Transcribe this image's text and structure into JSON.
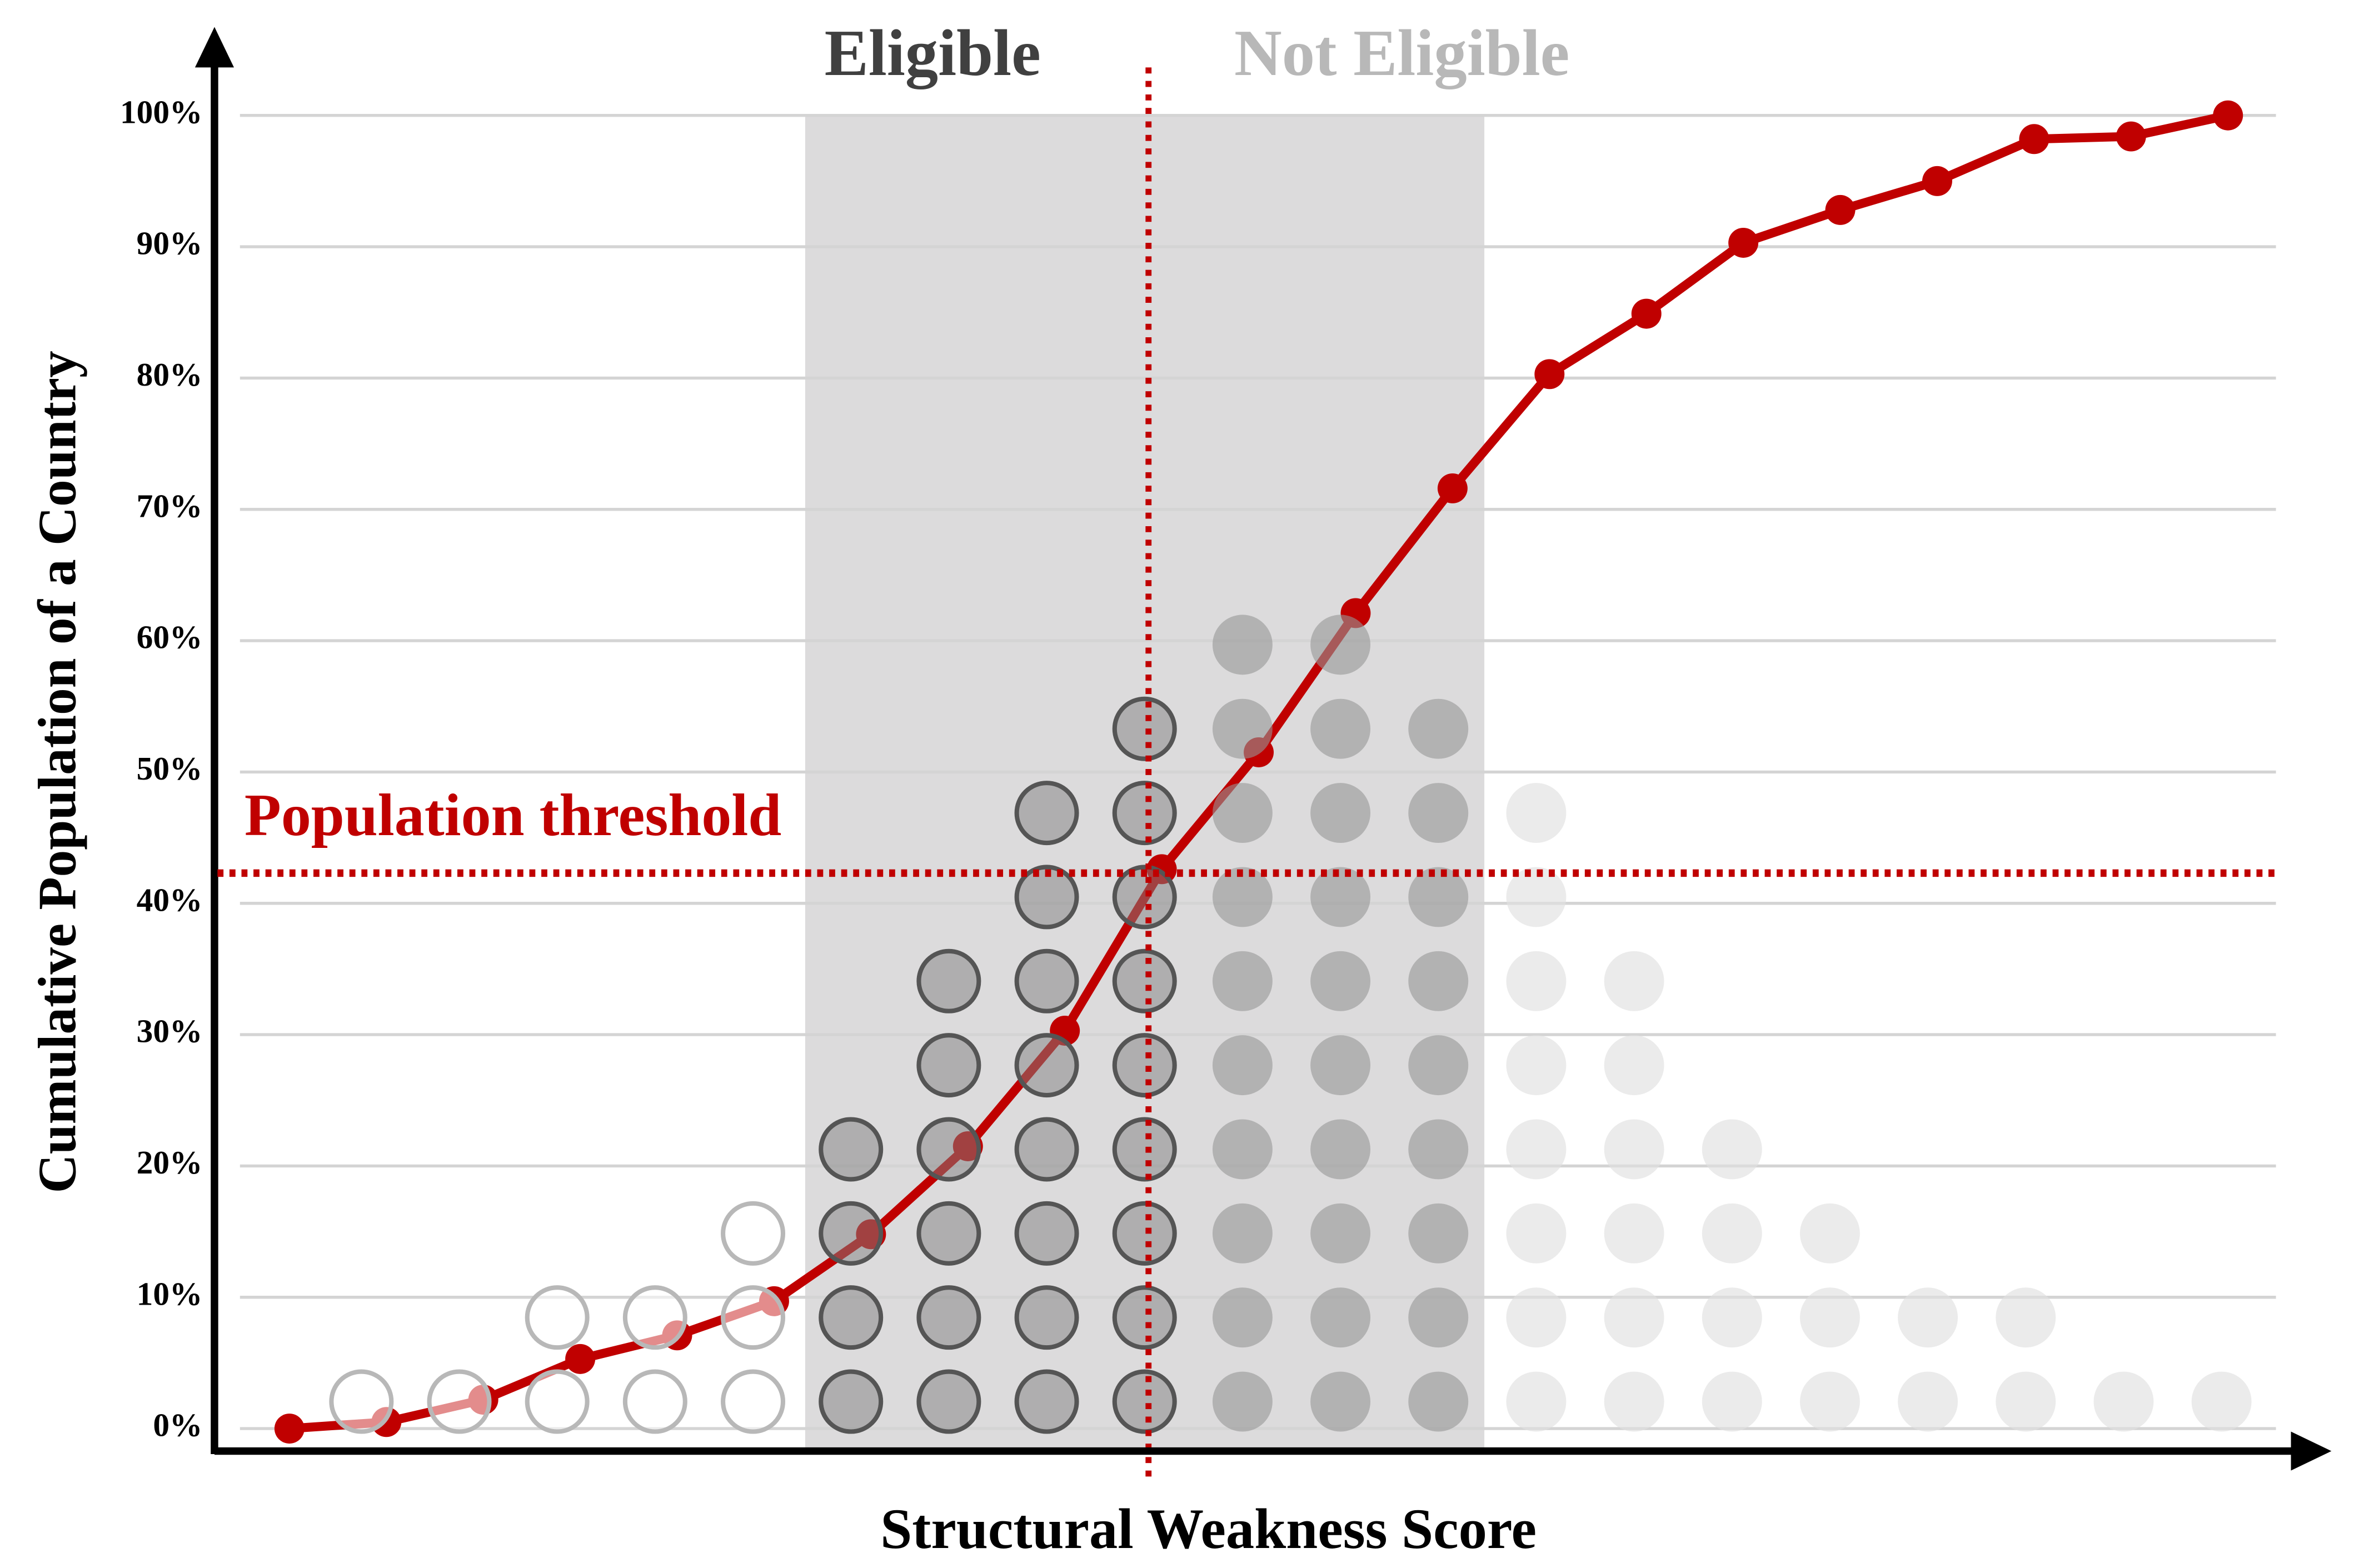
{
  "chart_data": {
    "type": "line",
    "y_label": "Cumulative Population of a Country",
    "x_label": "Structural Weakness Score",
    "annotations": {
      "eligible": "Eligible",
      "not_eligible": "Not Eligible",
      "threshold_label": "Population threshold"
    },
    "threshold": 42.3,
    "color": "#c00000",
    "values": [
      0,
      0.5,
      2.2,
      5.3,
      7.1,
      9.7,
      14.8,
      21.5,
      30.3,
      42.6,
      51.5,
      62.1,
      71.6,
      80.3,
      84.9,
      90.3,
      92.8,
      95.0,
      98.2,
      98.4,
      100
    ],
    "dot_counts": [
      1,
      1,
      2,
      2,
      3,
      4,
      6,
      8,
      9,
      10,
      10,
      9,
      8,
      6,
      4,
      3,
      2,
      2,
      1,
      1
    ],
    "ylim": [
      0,
      100
    ],
    "yticks": [
      {
        "value": 0,
        "label": "0%"
      },
      {
        "value": 10,
        "label": "10%"
      },
      {
        "value": 20,
        "label": "20%"
      },
      {
        "value": 30,
        "label": "30%"
      },
      {
        "value": 40,
        "label": "40%"
      },
      {
        "value": 50,
        "label": "50%"
      },
      {
        "value": 60,
        "label": "60%"
      },
      {
        "value": 70,
        "label": "70%"
      },
      {
        "value": 80,
        "label": "80%"
      },
      {
        "value": 90,
        "label": "90%"
      },
      {
        "value": 100,
        "label": "100%"
      }
    ],
    "grid": true
  }
}
